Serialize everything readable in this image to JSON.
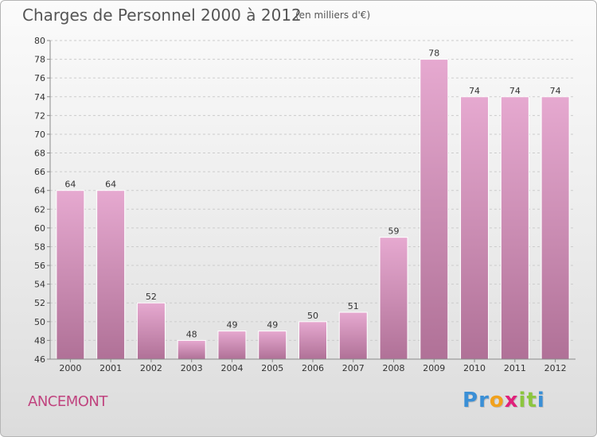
{
  "header": {
    "title": "Charges de Personnel 2000 à 2012",
    "subtitle": "(en milliers d'€)"
  },
  "footer": {
    "place": "ANCEMONT",
    "logo": {
      "letters": [
        {
          "char": "P",
          "color": "#3a8fd6"
        },
        {
          "char": "r",
          "color": "#3a8fd6"
        },
        {
          "char": "o",
          "color": "#f1a11c"
        },
        {
          "char": "x",
          "color": "#e0207a"
        },
        {
          "char": "i",
          "color": "#8cc63e"
        },
        {
          "char": "t",
          "color": "#8cc63e"
        },
        {
          "char": "i",
          "color": "#3a8fd6"
        }
      ]
    }
  },
  "colors": {
    "bar_top": "#e6a9d0",
    "bar_bottom": "#b07197",
    "grid": "#cccccc",
    "axis": "#8a8a8a"
  },
  "chart_data": {
    "type": "bar",
    "categories": [
      "2000",
      "2001",
      "2002",
      "2003",
      "2004",
      "2005",
      "2006",
      "2007",
      "2008",
      "2009",
      "2010",
      "2011",
      "2012"
    ],
    "values": [
      64,
      64,
      52,
      48,
      49,
      49,
      50,
      51,
      59,
      78,
      74,
      74,
      74
    ],
    "ylim": [
      46,
      80
    ],
    "yticks": [
      46,
      48,
      50,
      52,
      54,
      56,
      58,
      60,
      62,
      64,
      66,
      68,
      70,
      72,
      74,
      76,
      78,
      80
    ],
    "grid": "horizontal dashed",
    "legend": "none"
  }
}
